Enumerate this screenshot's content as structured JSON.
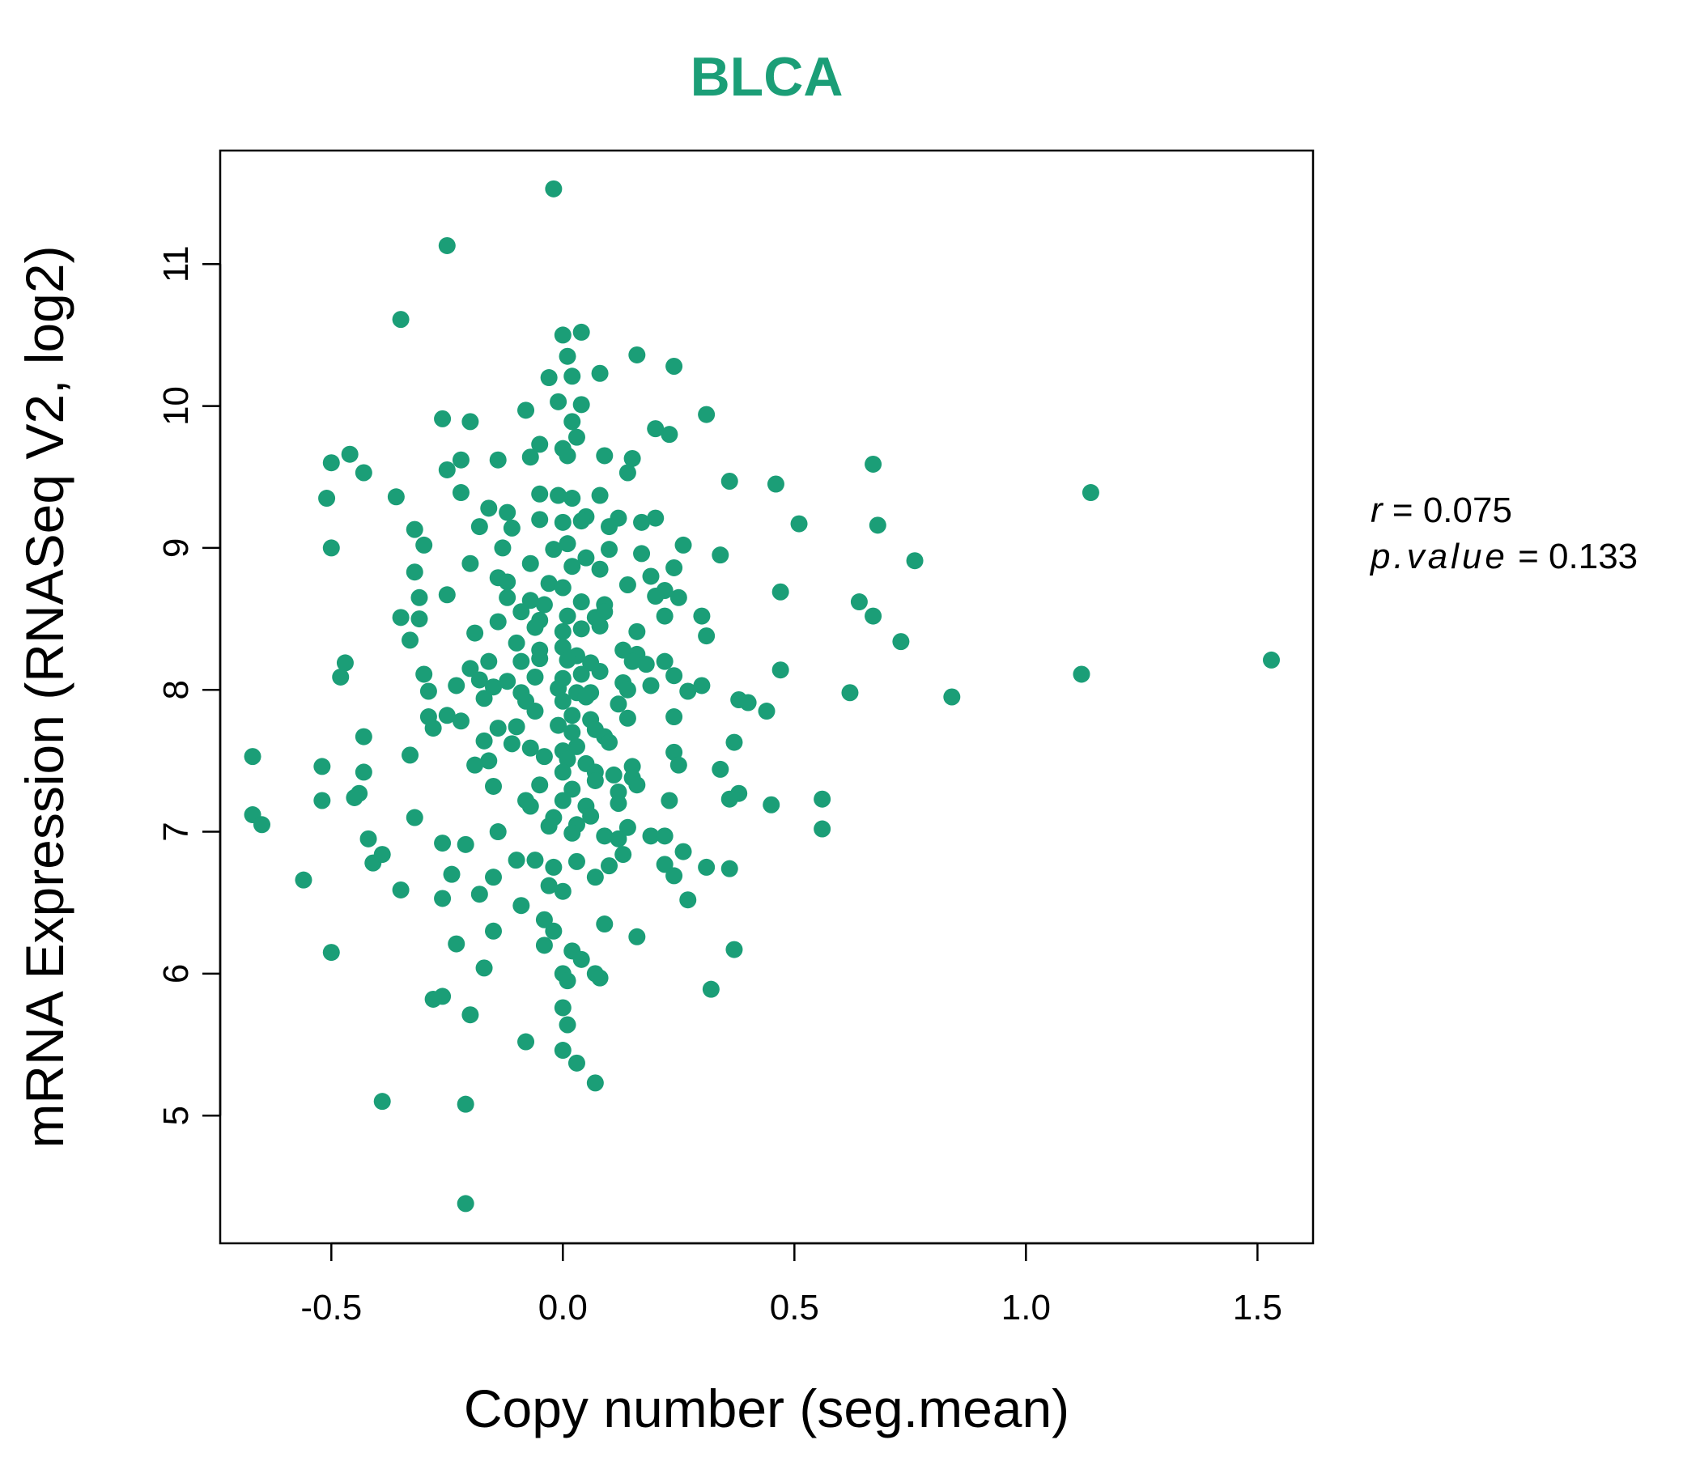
{
  "chart_data": {
    "type": "scatter",
    "title": "BLCA",
    "xlabel": "Copy number (seg.mean)",
    "ylabel": "mRNA Expression (RNASeq V2, log2)",
    "xlim": [
      -0.74,
      1.62
    ],
    "ylim": [
      4.1,
      11.8
    ],
    "xticks": [
      -0.5,
      0.0,
      0.5,
      1.0,
      1.5
    ],
    "xtick_labels": [
      "-0.5",
      "0.0",
      "0.5",
      "1.0",
      "1.5"
    ],
    "yticks": [
      5,
      6,
      7,
      8,
      9,
      10,
      11
    ],
    "ytick_labels": [
      "5",
      "6",
      "7",
      "8",
      "9",
      "10",
      "11"
    ],
    "grid": false,
    "color": "#1b9e77",
    "annotation": {
      "r_label": "r",
      "r_value": "0.075",
      "p_label": "p.value",
      "p_value": "0.133"
    },
    "series": [
      {
        "points": [
          [
            -0.02,
            11.53
          ],
          [
            -0.25,
            11.13
          ],
          [
            -0.35,
            10.61
          ],
          [
            0.0,
            10.5
          ],
          [
            0.04,
            10.52
          ],
          [
            0.01,
            10.35
          ],
          [
            0.16,
            10.36
          ],
          [
            0.24,
            10.28
          ],
          [
            -0.03,
            10.2
          ],
          [
            0.02,
            10.21
          ],
          [
            0.08,
            10.23
          ],
          [
            -0.01,
            10.03
          ],
          [
            0.04,
            10.01
          ],
          [
            -0.08,
            9.97
          ],
          [
            0.31,
            9.94
          ],
          [
            -0.26,
            9.91
          ],
          [
            -0.2,
            9.89
          ],
          [
            0.02,
            9.89
          ],
          [
            0.03,
            9.78
          ],
          [
            0.2,
            9.84
          ],
          [
            0.23,
            9.8
          ],
          [
            -0.05,
            9.73
          ],
          [
            0.0,
            9.7
          ],
          [
            -0.46,
            9.66
          ],
          [
            -0.5,
            9.6
          ],
          [
            -0.22,
            9.62
          ],
          [
            -0.14,
            9.62
          ],
          [
            -0.07,
            9.64
          ],
          [
            0.01,
            9.65
          ],
          [
            0.09,
            9.65
          ],
          [
            0.15,
            9.63
          ],
          [
            0.67,
            9.59
          ],
          [
            -0.43,
            9.53
          ],
          [
            -0.25,
            9.55
          ],
          [
            0.14,
            9.53
          ],
          [
            0.36,
            9.47
          ],
          [
            0.46,
            9.45
          ],
          [
            -0.51,
            9.35
          ],
          [
            -0.36,
            9.36
          ],
          [
            -0.22,
            9.39
          ],
          [
            -0.05,
            9.38
          ],
          [
            -0.01,
            9.37
          ],
          [
            0.02,
            9.35
          ],
          [
            0.08,
            9.37
          ],
          [
            1.14,
            9.39
          ],
          [
            -0.16,
            9.28
          ],
          [
            -0.12,
            9.25
          ],
          [
            0.05,
            9.22
          ],
          [
            0.12,
            9.21
          ],
          [
            0.2,
            9.21
          ],
          [
            -0.32,
            9.13
          ],
          [
            -0.18,
            9.15
          ],
          [
            -0.11,
            9.14
          ],
          [
            -0.05,
            9.2
          ],
          [
            0.0,
            9.18
          ],
          [
            0.04,
            9.19
          ],
          [
            0.1,
            9.15
          ],
          [
            0.17,
            9.18
          ],
          [
            0.51,
            9.17
          ],
          [
            0.68,
            9.16
          ],
          [
            -0.5,
            9.0
          ],
          [
            -0.3,
            9.02
          ],
          [
            -0.13,
            9.0
          ],
          [
            -0.02,
            8.99
          ],
          [
            0.01,
            9.03
          ],
          [
            0.05,
            8.93
          ],
          [
            0.1,
            8.99
          ],
          [
            0.17,
            8.96
          ],
          [
            0.26,
            9.02
          ],
          [
            0.34,
            8.95
          ],
          [
            0.76,
            8.91
          ],
          [
            -0.2,
            8.89
          ],
          [
            -0.32,
            8.83
          ],
          [
            -0.07,
            8.89
          ],
          [
            0.02,
            8.87
          ],
          [
            0.08,
            8.85
          ],
          [
            0.19,
            8.8
          ],
          [
            0.24,
            8.86
          ],
          [
            -0.14,
            8.79
          ],
          [
            -0.12,
            8.76
          ],
          [
            -0.03,
            8.75
          ],
          [
            0.0,
            8.72
          ],
          [
            0.14,
            8.74
          ],
          [
            0.22,
            8.7
          ],
          [
            0.47,
            8.69
          ],
          [
            -0.25,
            8.67
          ],
          [
            -0.31,
            8.65
          ],
          [
            -0.12,
            8.65
          ],
          [
            -0.07,
            8.63
          ],
          [
            -0.04,
            8.6
          ],
          [
            0.04,
            8.62
          ],
          [
            0.09,
            8.6
          ],
          [
            0.2,
            8.66
          ],
          [
            0.25,
            8.65
          ],
          [
            0.64,
            8.62
          ],
          [
            -0.35,
            8.51
          ],
          [
            -0.31,
            8.5
          ],
          [
            -0.09,
            8.55
          ],
          [
            -0.05,
            8.49
          ],
          [
            0.01,
            8.52
          ],
          [
            0.07,
            8.51
          ],
          [
            0.09,
            8.55
          ],
          [
            0.22,
            8.52
          ],
          [
            0.3,
            8.52
          ],
          [
            0.67,
            8.52
          ],
          [
            -0.19,
            8.4
          ],
          [
            -0.14,
            8.48
          ],
          [
            -0.06,
            8.44
          ],
          [
            0.0,
            8.41
          ],
          [
            0.04,
            8.43
          ],
          [
            0.08,
            8.45
          ],
          [
            0.16,
            8.41
          ],
          [
            0.31,
            8.38
          ],
          [
            0.73,
            8.34
          ],
          [
            -0.33,
            8.35
          ],
          [
            -0.1,
            8.33
          ],
          [
            -0.05,
            8.28
          ],
          [
            0.0,
            8.3
          ],
          [
            0.03,
            8.24
          ],
          [
            0.13,
            8.28
          ],
          [
            0.16,
            8.25
          ],
          [
            -0.47,
            8.19
          ],
          [
            -0.2,
            8.15
          ],
          [
            -0.16,
            8.2
          ],
          [
            -0.09,
            8.2
          ],
          [
            -0.05,
            8.22
          ],
          [
            0.01,
            8.21
          ],
          [
            0.06,
            8.19
          ],
          [
            0.15,
            8.2
          ],
          [
            0.18,
            8.18
          ],
          [
            0.22,
            8.2
          ],
          [
            0.47,
            8.14
          ],
          [
            1.53,
            8.21
          ],
          [
            -0.48,
            8.09
          ],
          [
            -0.3,
            8.11
          ],
          [
            -0.18,
            8.07
          ],
          [
            -0.12,
            8.06
          ],
          [
            -0.06,
            8.09
          ],
          [
            0.0,
            8.08
          ],
          [
            0.04,
            8.11
          ],
          [
            0.08,
            8.13
          ],
          [
            0.13,
            8.05
          ],
          [
            0.24,
            8.1
          ],
          [
            1.12,
            8.11
          ],
          [
            -0.29,
            7.99
          ],
          [
            -0.23,
            8.03
          ],
          [
            -0.15,
            8.02
          ],
          [
            -0.09,
            7.98
          ],
          [
            -0.01,
            8.01
          ],
          [
            0.03,
            7.98
          ],
          [
            0.06,
            7.98
          ],
          [
            0.14,
            8.0
          ],
          [
            0.19,
            8.03
          ],
          [
            0.27,
            7.99
          ],
          [
            0.3,
            8.03
          ],
          [
            0.62,
            7.98
          ],
          [
            0.84,
            7.95
          ],
          [
            -0.17,
            7.94
          ],
          [
            -0.08,
            7.92
          ],
          [
            0.0,
            7.92
          ],
          [
            0.05,
            7.95
          ],
          [
            0.12,
            7.9
          ],
          [
            0.38,
            7.93
          ],
          [
            0.4,
            7.91
          ],
          [
            0.44,
            7.85
          ],
          [
            -0.29,
            7.81
          ],
          [
            -0.25,
            7.82
          ],
          [
            -0.22,
            7.78
          ],
          [
            -0.06,
            7.85
          ],
          [
            0.02,
            7.82
          ],
          [
            0.06,
            7.79
          ],
          [
            0.14,
            7.8
          ],
          [
            0.24,
            7.81
          ],
          [
            -0.28,
            7.73
          ],
          [
            -0.14,
            7.73
          ],
          [
            -0.1,
            7.74
          ],
          [
            -0.01,
            7.75
          ],
          [
            0.02,
            7.7
          ],
          [
            0.07,
            7.72
          ],
          [
            0.09,
            7.67
          ],
          [
            -0.43,
            7.67
          ],
          [
            -0.17,
            7.64
          ],
          [
            -0.11,
            7.62
          ],
          [
            -0.07,
            7.59
          ],
          [
            0.0,
            7.57
          ],
          [
            0.03,
            7.6
          ],
          [
            0.1,
            7.63
          ],
          [
            0.37,
            7.63
          ],
          [
            -0.67,
            7.53
          ],
          [
            -0.33,
            7.54
          ],
          [
            -0.16,
            7.5
          ],
          [
            -0.04,
            7.53
          ],
          [
            0.01,
            7.51
          ],
          [
            0.05,
            7.48
          ],
          [
            0.15,
            7.46
          ],
          [
            0.24,
            7.56
          ],
          [
            0.25,
            7.47
          ],
          [
            -0.52,
            7.46
          ],
          [
            -0.43,
            7.42
          ],
          [
            -0.19,
            7.47
          ],
          [
            0.0,
            7.42
          ],
          [
            0.07,
            7.42
          ],
          [
            0.11,
            7.4
          ],
          [
            0.15,
            7.38
          ],
          [
            0.34,
            7.44
          ],
          [
            -0.15,
            7.32
          ],
          [
            -0.05,
            7.33
          ],
          [
            0.02,
            7.3
          ],
          [
            0.07,
            7.36
          ],
          [
            0.12,
            7.28
          ],
          [
            0.16,
            7.33
          ],
          [
            0.38,
            7.27
          ],
          [
            -0.44,
            7.27
          ],
          [
            -0.08,
            7.22
          ],
          [
            0.0,
            7.22
          ],
          [
            0.05,
            7.18
          ],
          [
            0.12,
            7.2
          ],
          [
            0.23,
            7.22
          ],
          [
            0.36,
            7.23
          ],
          [
            0.45,
            7.19
          ],
          [
            0.56,
            7.23
          ],
          [
            -0.67,
            7.12
          ],
          [
            -0.52,
            7.22
          ],
          [
            -0.45,
            7.24
          ],
          [
            -0.32,
            7.1
          ],
          [
            -0.07,
            7.18
          ],
          [
            -0.02,
            7.1
          ],
          [
            0.03,
            7.05
          ],
          [
            0.06,
            7.11
          ],
          [
            0.14,
            7.03
          ],
          [
            -0.65,
            7.05
          ],
          [
            -0.14,
            7.0
          ],
          [
            -0.03,
            7.04
          ],
          [
            0.02,
            6.99
          ],
          [
            0.09,
            6.97
          ],
          [
            0.12,
            6.95
          ],
          [
            0.19,
            6.97
          ],
          [
            0.22,
            6.97
          ],
          [
            0.56,
            7.02
          ],
          [
            -0.42,
            6.95
          ],
          [
            -0.26,
            6.92
          ],
          [
            -0.21,
            6.91
          ],
          [
            -0.1,
            6.8
          ],
          [
            -0.06,
            6.8
          ],
          [
            0.03,
            6.79
          ],
          [
            0.1,
            6.76
          ],
          [
            0.13,
            6.84
          ],
          [
            0.22,
            6.77
          ],
          [
            0.26,
            6.86
          ],
          [
            0.31,
            6.75
          ],
          [
            0.36,
            6.74
          ],
          [
            -0.41,
            6.78
          ],
          [
            -0.39,
            6.84
          ],
          [
            -0.24,
            6.7
          ],
          [
            -0.15,
            6.68
          ],
          [
            -0.02,
            6.75
          ],
          [
            0.07,
            6.68
          ],
          [
            0.24,
            6.69
          ],
          [
            -0.56,
            6.66
          ],
          [
            -0.35,
            6.59
          ],
          [
            -0.26,
            6.53
          ],
          [
            -0.18,
            6.56
          ],
          [
            -0.03,
            6.62
          ],
          [
            0.0,
            6.58
          ],
          [
            0.27,
            6.52
          ],
          [
            -0.09,
            6.48
          ],
          [
            -0.04,
            6.38
          ],
          [
            0.09,
            6.35
          ],
          [
            -0.15,
            6.3
          ],
          [
            -0.02,
            6.3
          ],
          [
            0.16,
            6.26
          ],
          [
            -0.23,
            6.21
          ],
          [
            -0.04,
            6.2
          ],
          [
            0.02,
            6.16
          ],
          [
            0.04,
            6.1
          ],
          [
            0.37,
            6.17
          ],
          [
            -0.5,
            6.15
          ],
          [
            -0.17,
            6.04
          ],
          [
            0.0,
            6.0
          ],
          [
            0.01,
            5.95
          ],
          [
            0.07,
            6.0
          ],
          [
            0.08,
            5.97
          ],
          [
            0.32,
            5.89
          ],
          [
            -0.26,
            5.84
          ],
          [
            -0.28,
            5.82
          ],
          [
            0.0,
            5.76
          ],
          [
            -0.2,
            5.71
          ],
          [
            0.01,
            5.64
          ],
          [
            -0.08,
            5.52
          ],
          [
            0.0,
            5.46
          ],
          [
            0.03,
            5.37
          ],
          [
            0.07,
            5.23
          ],
          [
            -0.39,
            5.1
          ],
          [
            -0.21,
            5.08
          ],
          [
            -0.21,
            4.38
          ]
        ]
      }
    ]
  }
}
